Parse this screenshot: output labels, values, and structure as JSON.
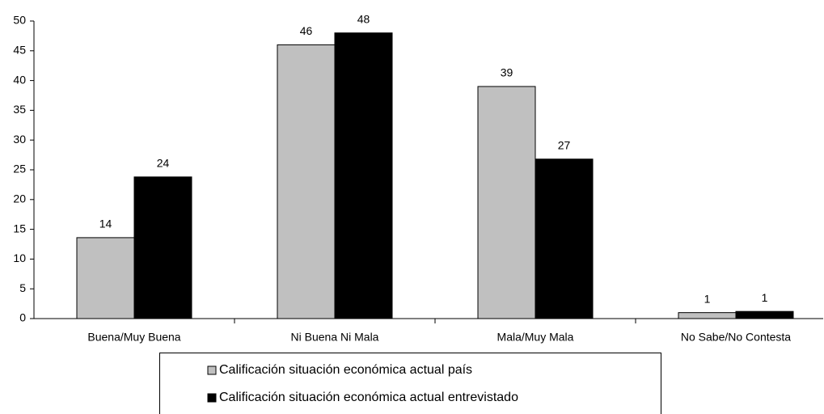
{
  "chart_data": {
    "type": "bar",
    "categories": [
      "Buena/Muy Buena",
      "Ni Buena Ni Mala",
      "Mala/Muy Mala",
      "No Sabe/No Contesta"
    ],
    "series": [
      {
        "name": "Calificación situación económica actual país",
        "color": "#c0c0c0",
        "values": [
          13.6,
          46,
          39,
          1
        ],
        "value_labels": [
          "14",
          "46",
          "39",
          "1"
        ]
      },
      {
        "name": "Calificación situación económica actual entrevistado",
        "color": "#000000",
        "values": [
          23.8,
          48,
          26.8,
          1.2
        ],
        "value_labels": [
          "24",
          "48",
          "27",
          "1"
        ]
      }
    ],
    "ylim": [
      0,
      50
    ],
    "yticks": [
      0,
      5,
      10,
      15,
      20,
      25,
      30,
      35,
      40,
      45,
      50
    ],
    "grid": false,
    "legend": "bottom"
  }
}
